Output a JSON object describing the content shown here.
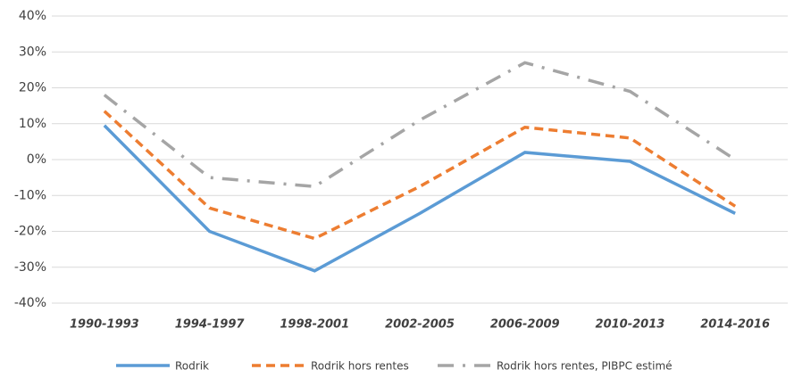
{
  "chart_data": {
    "type": "line",
    "categories": [
      "1990-1993",
      "1994-1997",
      "1998-2001",
      "2002-2005",
      "2006-2009",
      "2010-2013",
      "2014-2016"
    ],
    "series": [
      {
        "name": "Rodrik",
        "color": "#5b9bd5",
        "values": [
          9.5,
          -20,
          -31,
          -15,
          2,
          -0.5,
          -15
        ]
      },
      {
        "name": "Rodrik hors rentes",
        "color": "#ed7d31",
        "values": [
          13.5,
          -13.5,
          -22,
          -7.5,
          9,
          6,
          -13
        ]
      },
      {
        "name": "Rodrik hors rentes, PIBPC estimé",
        "color": "#a5a5a5",
        "values": [
          18,
          -5,
          -7.5,
          11,
          27,
          19,
          0
        ]
      }
    ],
    "ylim": [
      -40,
      40
    ],
    "yticks": [
      {
        "value": -40,
        "label": "-40%"
      },
      {
        "value": -30,
        "label": "-30%"
      },
      {
        "value": -20,
        "label": "-20%"
      },
      {
        "value": -10,
        "label": "-10%"
      },
      {
        "value": 0,
        "label": "0%"
      },
      {
        "value": 10,
        "label": "10%"
      },
      {
        "value": 20,
        "label": "20%"
      },
      {
        "value": 30,
        "label": "30%"
      },
      {
        "value": 40,
        "label": "40%"
      }
    ],
    "grid": true,
    "legend": "bottom"
  }
}
